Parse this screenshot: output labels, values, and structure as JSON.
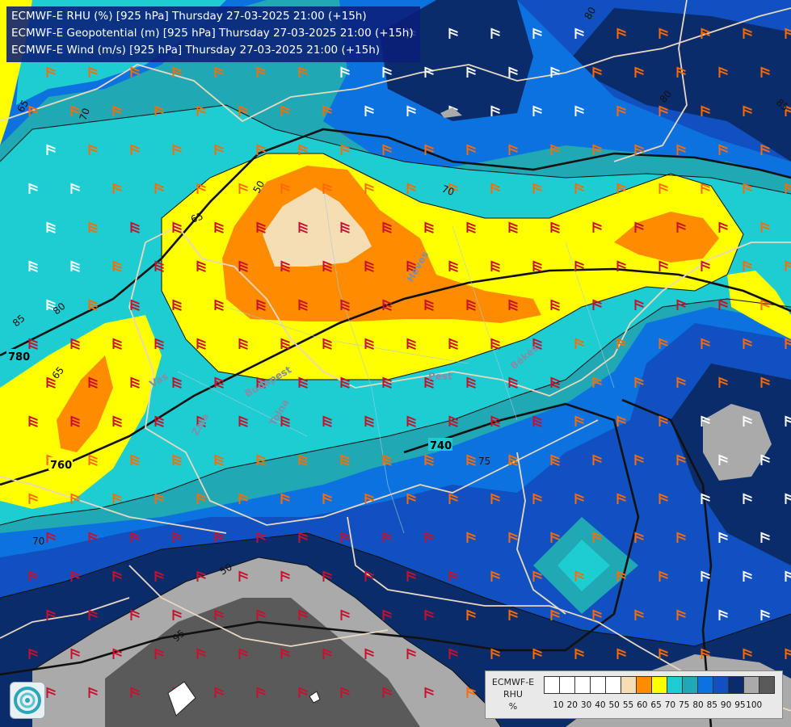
{
  "header": {
    "line1": "ECMWF-E RHU (%) [925 hPa] Thursday 27-03-2025 21:00 (+15h)",
    "line2": "ECMWF-E Geopotential (m) [925 hPa] Thursday 27-03-2025 21:00 (+15h)",
    "line3": "ECMWF-E Wind (m/s) [925 hPa] Thursday 27-03-2025 21:00 (+15h)"
  },
  "legend": {
    "title_line1": "ECMWF-E",
    "title_line2": "RHU",
    "unit": "%",
    "ticks": [
      "10",
      "20",
      "30",
      "40",
      "50",
      "55",
      "60",
      "65",
      "70",
      "75",
      "80",
      "85",
      "90",
      "95",
      "100"
    ],
    "colors": [
      "#ffffff",
      "#ffffff",
      "#ffffff",
      "#ffffff",
      "#ffffff",
      "#f5deb3",
      "#ff8c00",
      "#ffff00",
      "#1ecdd2",
      "#20a8b4",
      "#0c72e0",
      "#1050c0",
      "#0b2c6b",
      "#aaaaaa",
      "#5a5a5a"
    ]
  },
  "contour_labels": {
    "geopotential": [
      "780",
      "760",
      "740"
    ],
    "rhu": [
      "65",
      "70",
      "80",
      "85",
      "50",
      "65",
      "70",
      "65",
      "70",
      "80",
      "75",
      "50",
      "95",
      "85",
      "80"
    ]
  },
  "place_labels": [
    "Heves",
    "Pest",
    "Békés",
    "Vas",
    "Budapest",
    "Zala",
    "Tolna"
  ],
  "colors": {
    "rhu_50_55": "#f5deb3",
    "rhu_55_60": "#ff8c00",
    "rhu_60_65": "#ffff00",
    "rhu_65_70": "#1ecdd2",
    "rhu_70_75": "#20a8b4",
    "rhu_75_80": "#0c72e0",
    "rhu_80_85": "#1050c0",
    "rhu_85_90": "#0b2c6b",
    "rhu_90_95": "#aaaaaa",
    "rhu_95_100": "#5a5a5a",
    "wind_orange": "#ff6a00",
    "wind_red": "#c8102e",
    "wind_white": "#ffffff",
    "border": "#e8d8c0"
  },
  "icons": [
    "ecmwf-swirl-icon"
  ]
}
